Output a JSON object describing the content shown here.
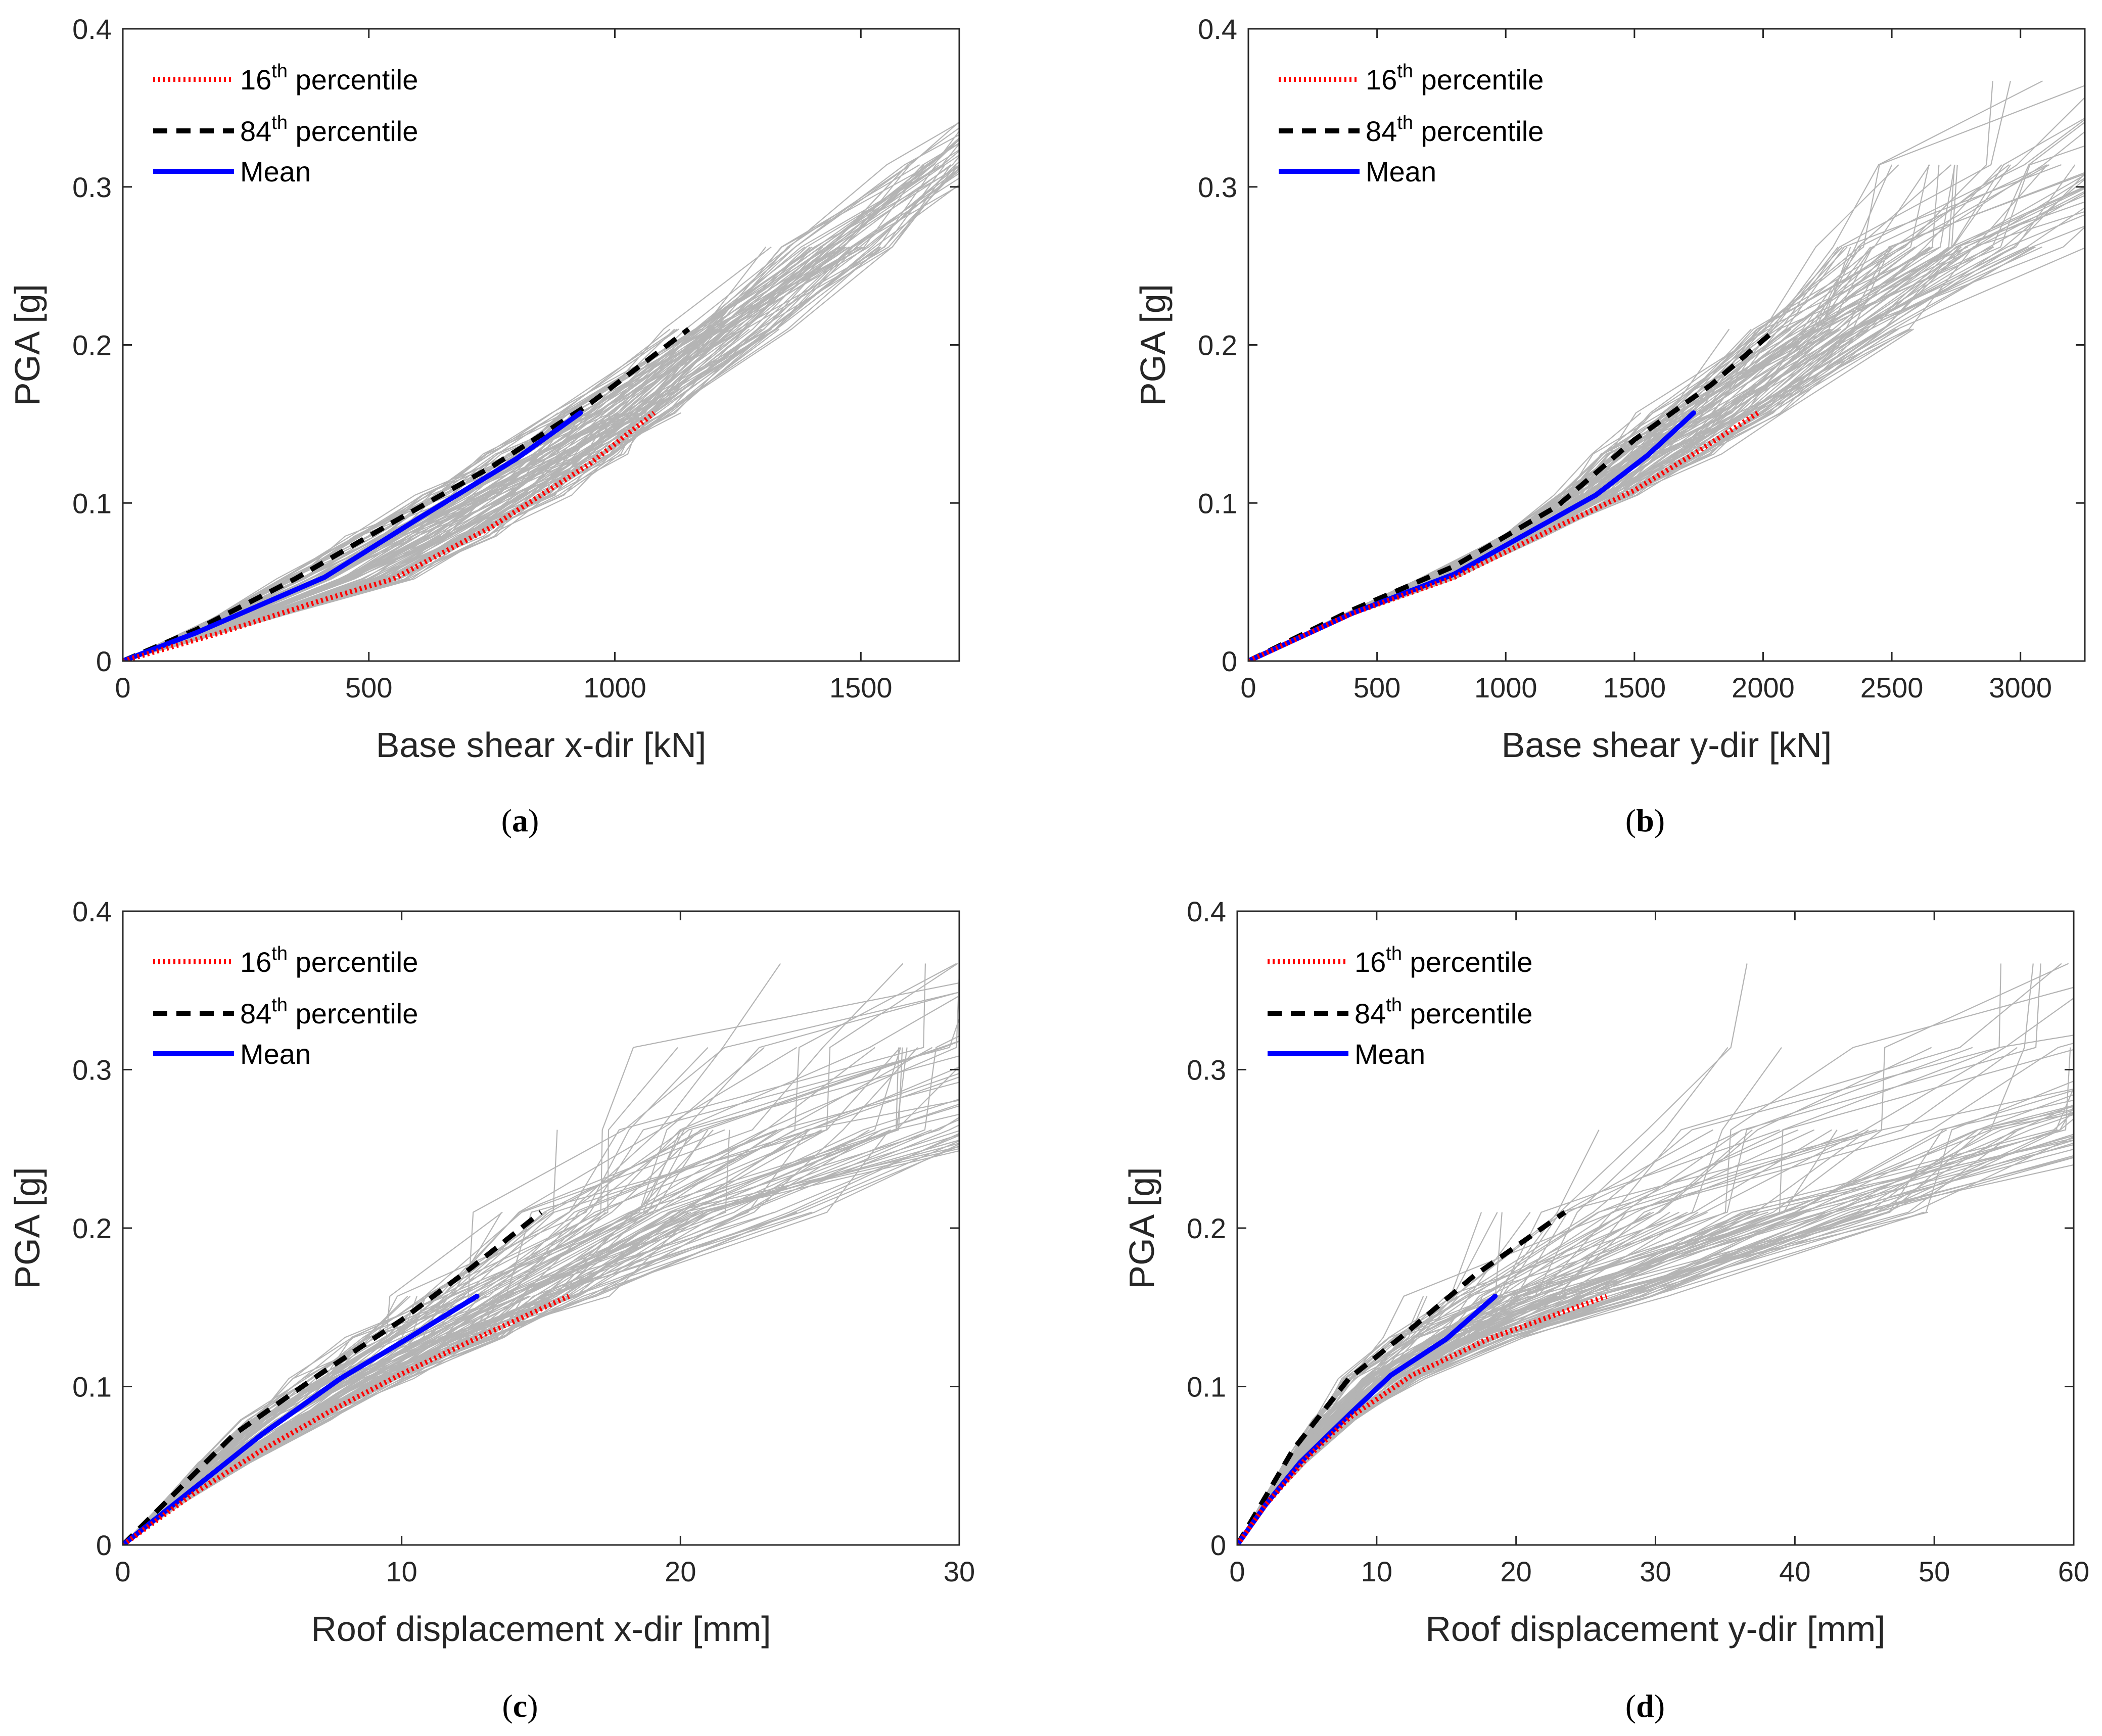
{
  "colors": {
    "p16": "#ff0000",
    "p84": "#000000",
    "mean": "#0000ff",
    "records": "#b4b4b4",
    "axis": "#262626"
  },
  "legend": [
    {
      "key": "p16",
      "base": "16",
      "sup": "th",
      "rest": " percentile",
      "style": "dotted"
    },
    {
      "key": "p84",
      "base": "84",
      "sup": "th",
      "rest": " percentile",
      "style": "dashed"
    },
    {
      "key": "mean",
      "base": "Mean",
      "sup": "",
      "rest": "",
      "style": "solid"
    }
  ],
  "chart_data": [
    {
      "type": "line",
      "panel": "a",
      "caption_letter": "a",
      "xlabel": "Base shear x-dir [kN]",
      "ylabel": "PGA [g]",
      "xlim": [
        0,
        1700
      ],
      "ylim": [
        0,
        0.4
      ],
      "xticks": [
        0,
        500,
        1000,
        1500
      ],
      "yticks": [
        0,
        0.1,
        0.2,
        0.3,
        0.4
      ],
      "legend_position": "top-left",
      "series": [
        {
          "name": "16th percentile",
          "key": "p16",
          "x": [
            0,
            200,
            400,
            550,
            750,
            950,
            1080
          ],
          "y": [
            0,
            0.018,
            0.038,
            0.052,
            0.085,
            0.125,
            0.157
          ]
        },
        {
          "name": "84th percentile",
          "key": "p84",
          "x": [
            0,
            150,
            350,
            550,
            750,
            950,
            1150
          ],
          "y": [
            0,
            0.02,
            0.052,
            0.088,
            0.123,
            0.163,
            0.21
          ]
        },
        {
          "name": "Mean",
          "key": "mean",
          "x": [
            0,
            150,
            410,
            600,
            800,
            930
          ],
          "y": [
            0,
            0.018,
            0.053,
            0.09,
            0.128,
            0.157
          ]
        }
      ]
    },
    {
      "type": "line",
      "panel": "b",
      "caption_letter": "b",
      "xlabel": "Base shear y-dir [kN]",
      "ylabel": "PGA [g]",
      "xlim": [
        0,
        3250
      ],
      "ylim": [
        0,
        0.4
      ],
      "xticks": [
        0,
        500,
        1000,
        1500,
        2000,
        2500,
        3000
      ],
      "yticks": [
        0,
        0.1,
        0.2,
        0.3,
        0.4
      ],
      "legend_position": "top-left",
      "series": [
        {
          "name": "16th percentile",
          "key": "p16",
          "x": [
            0,
            400,
            800,
            1200,
            1500,
            1750,
            1980
          ],
          "y": [
            0,
            0.03,
            0.053,
            0.085,
            0.108,
            0.133,
            0.157
          ]
        },
        {
          "name": "84th percentile",
          "key": "p84",
          "x": [
            0,
            400,
            800,
            1200,
            1500,
            1800,
            2050
          ],
          "y": [
            0,
            0.032,
            0.06,
            0.098,
            0.14,
            0.175,
            0.21
          ]
        },
        {
          "name": "Mean",
          "key": "mean",
          "x": [
            0,
            400,
            800,
            1350,
            1550,
            1730
          ],
          "y": [
            0,
            0.03,
            0.055,
            0.105,
            0.13,
            0.157
          ]
        }
      ]
    },
    {
      "type": "line",
      "panel": "c",
      "caption_letter": "c",
      "xlabel": "Roof displacement x-dir [mm]",
      "ylabel": "PGA [g]",
      "xlim": [
        0,
        30
      ],
      "ylim": [
        0,
        0.4
      ],
      "xticks": [
        0,
        10,
        20,
        30
      ],
      "yticks": [
        0,
        0.1,
        0.2,
        0.3,
        0.4
      ],
      "legend_position": "top-left",
      "series": [
        {
          "name": "16th percentile",
          "key": "p16",
          "x": [
            0,
            2.5,
            5,
            7.5,
            10,
            13,
            16
          ],
          "y": [
            0,
            0.032,
            0.06,
            0.085,
            0.108,
            0.133,
            0.157
          ]
        },
        {
          "name": "84th percentile",
          "key": "p84",
          "x": [
            0,
            2,
            4,
            7,
            10,
            12.5,
            15
          ],
          "y": [
            0,
            0.035,
            0.07,
            0.107,
            0.142,
            0.175,
            0.21
          ]
        },
        {
          "name": "Mean",
          "key": "mean",
          "x": [
            0,
            2.5,
            5,
            7.8,
            10,
            12.7
          ],
          "y": [
            0,
            0.035,
            0.07,
            0.105,
            0.128,
            0.157
          ]
        }
      ]
    },
    {
      "type": "line",
      "panel": "d",
      "caption_letter": "d",
      "xlabel": "Roof displacement y-dir [mm]",
      "ylabel": "PGA [g]",
      "xlim": [
        0,
        60
      ],
      "ylim": [
        0,
        0.4
      ],
      "xticks": [
        0,
        10,
        20,
        30,
        40,
        50,
        60
      ],
      "yticks": [
        0,
        0.1,
        0.2,
        0.3,
        0.4
      ],
      "legend_position": "top-left",
      "series": [
        {
          "name": "16th percentile",
          "key": "p16",
          "x": [
            0,
            2,
            5,
            8,
            12.5,
            18,
            26.5
          ],
          "y": [
            0,
            0.025,
            0.055,
            0.08,
            0.107,
            0.13,
            0.157
          ]
        },
        {
          "name": "84th percentile",
          "key": "p84",
          "x": [
            0,
            2,
            4,
            8,
            12,
            17,
            23.5
          ],
          "y": [
            0,
            0.03,
            0.06,
            0.105,
            0.133,
            0.17,
            0.21
          ]
        },
        {
          "name": "Mean",
          "key": "mean",
          "x": [
            0,
            2,
            4.5,
            8,
            11,
            15,
            18.5
          ],
          "y": [
            0,
            0.025,
            0.052,
            0.082,
            0.107,
            0.13,
            0.157
          ]
        }
      ]
    }
  ]
}
